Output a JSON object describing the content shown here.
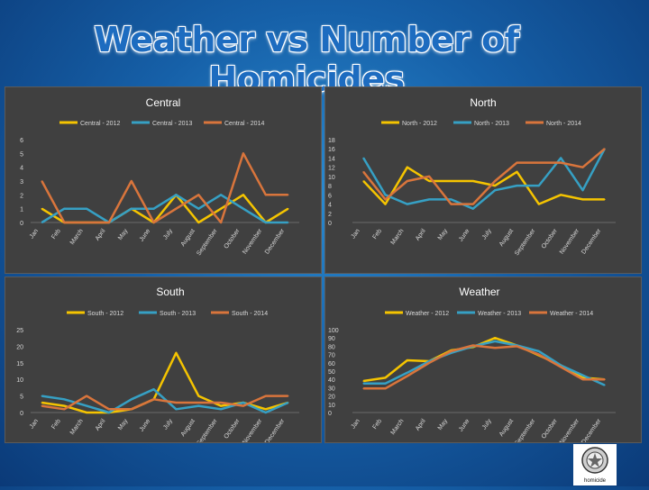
{
  "title": "Weather vs Number of Homicides",
  "logo_caption": "homicide",
  "colors": {
    "s2012": "#f5c400",
    "s2013": "#36a0c4",
    "s2014": "#d9753c",
    "axis_text": "#d8d8d8",
    "grid": "#6a6a6a"
  },
  "chart_data": [
    {
      "type": "line",
      "title": "Central",
      "categories": [
        "Jan",
        "Feb",
        "March",
        "April",
        "May",
        "June",
        "July",
        "August",
        "September",
        "October",
        "November",
        "December"
      ],
      "ylim": [
        0,
        6
      ],
      "yticks": [
        0,
        1,
        2,
        3,
        4,
        5,
        6
      ],
      "series": [
        {
          "name": "Central - 2012",
          "values": [
            1,
            0,
            0,
            0,
            1,
            0,
            2,
            0,
            1,
            2,
            0,
            1
          ]
        },
        {
          "name": "Central - 2013",
          "values": [
            0,
            1,
            1,
            0,
            1,
            1,
            2,
            1,
            2,
            1,
            0,
            0
          ]
        },
        {
          "name": "Central - 2014",
          "values": [
            3,
            0,
            0,
            0,
            3,
            0,
            1,
            2,
            0,
            5,
            2,
            2
          ]
        }
      ]
    },
    {
      "type": "line",
      "title": "North",
      "categories": [
        "Jan",
        "Feb",
        "March",
        "April",
        "May",
        "June",
        "July",
        "August",
        "September",
        "October",
        "November",
        "December"
      ],
      "ylim": [
        0,
        18
      ],
      "yticks": [
        0,
        2,
        4,
        6,
        8,
        10,
        12,
        14,
        16,
        18
      ],
      "series": [
        {
          "name": "North - 2012",
          "values": [
            9,
            4,
            12,
            9,
            9,
            9,
            8,
            11,
            4,
            6,
            5,
            5
          ]
        },
        {
          "name": "North - 2013",
          "values": [
            14,
            6,
            4,
            5,
            5,
            3,
            7,
            8,
            8,
            14,
            7,
            16
          ]
        },
        {
          "name": "North - 2014",
          "values": [
            11,
            5,
            9,
            10,
            4,
            4,
            9,
            13,
            13,
            13,
            12,
            16
          ]
        }
      ]
    },
    {
      "type": "line",
      "title": "South",
      "categories": [
        "Jan",
        "Feb",
        "March",
        "April",
        "May",
        "June",
        "July",
        "August",
        "September",
        "October",
        "November",
        "December"
      ],
      "ylim": [
        0,
        25
      ],
      "yticks": [
        0,
        5,
        10,
        15,
        20,
        25
      ],
      "series": [
        {
          "name": "South - 2012",
          "values": [
            3,
            2,
            0,
            0,
            1,
            4,
            18,
            5,
            2,
            3,
            1,
            3
          ]
        },
        {
          "name": "South - 2013",
          "values": [
            5,
            4,
            2,
            0,
            4,
            7,
            1,
            2,
            1,
            3,
            0,
            3
          ]
        },
        {
          "name": "South - 2014",
          "values": [
            2,
            1,
            5,
            1,
            1,
            4,
            3,
            3,
            3,
            2,
            5,
            5
          ]
        }
      ]
    },
    {
      "type": "line",
      "title": "Weather",
      "categories": [
        "Jan",
        "Feb",
        "March",
        "April",
        "May",
        "June",
        "July",
        "August",
        "September",
        "October",
        "November",
        "December"
      ],
      "ylim": [
        0,
        100
      ],
      "yticks": [
        0,
        10,
        20,
        30,
        40,
        50,
        60,
        70,
        80,
        90,
        100
      ],
      "series": [
        {
          "name": "Weather - 2012",
          "values": [
            38,
            42,
            63,
            62,
            75,
            79,
            90,
            81,
            69,
            57,
            42,
            40
          ]
        },
        {
          "name": "Weather - 2013",
          "values": [
            35,
            35,
            48,
            62,
            72,
            80,
            86,
            81,
            74,
            57,
            45,
            33
          ]
        },
        {
          "name": "Weather - 2014",
          "values": [
            29,
            29,
            44,
            60,
            74,
            81,
            78,
            80,
            70,
            55,
            40,
            40
          ]
        }
      ]
    }
  ]
}
